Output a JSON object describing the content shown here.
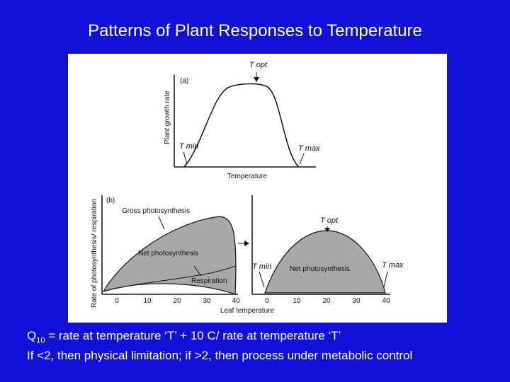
{
  "slide": {
    "title": "Patterns of Plant Responses to Temperature"
  },
  "panel_a": {
    "label": "(a)",
    "ylabel": "Plant growth rate",
    "xlabel": "Temperature",
    "t_opt": "T opt",
    "t_min": "T min",
    "t_max": "T max"
  },
  "panel_b": {
    "label": "(b)",
    "ylabel": "Rate of photosynthesis/ respiration",
    "xlabel": "Leaf temperature",
    "gross": "Gross photosynthesis",
    "net": "Net photosynthesis",
    "resp": "Respiration",
    "net_right": "Net photosynthesis",
    "t_opt": "T opt",
    "t_min": "T min",
    "t_max": "T max",
    "ticks_left": [
      "0",
      "10",
      "20",
      "30",
      "40"
    ],
    "ticks_right": [
      "0",
      "10",
      "20",
      "30",
      "40"
    ]
  },
  "caption": {
    "q_symbol": "Q",
    "q_sub": "10",
    "line1_rest": " = rate at temperature ‘T’ + 10 C/ rate at temperature ‘T’",
    "line2": "If <2, then physical limitation; if >2, then process under metabolic control"
  },
  "colors": {
    "background": "#1010d8",
    "text": "#ffffff",
    "shade": "#a8a8a8"
  }
}
